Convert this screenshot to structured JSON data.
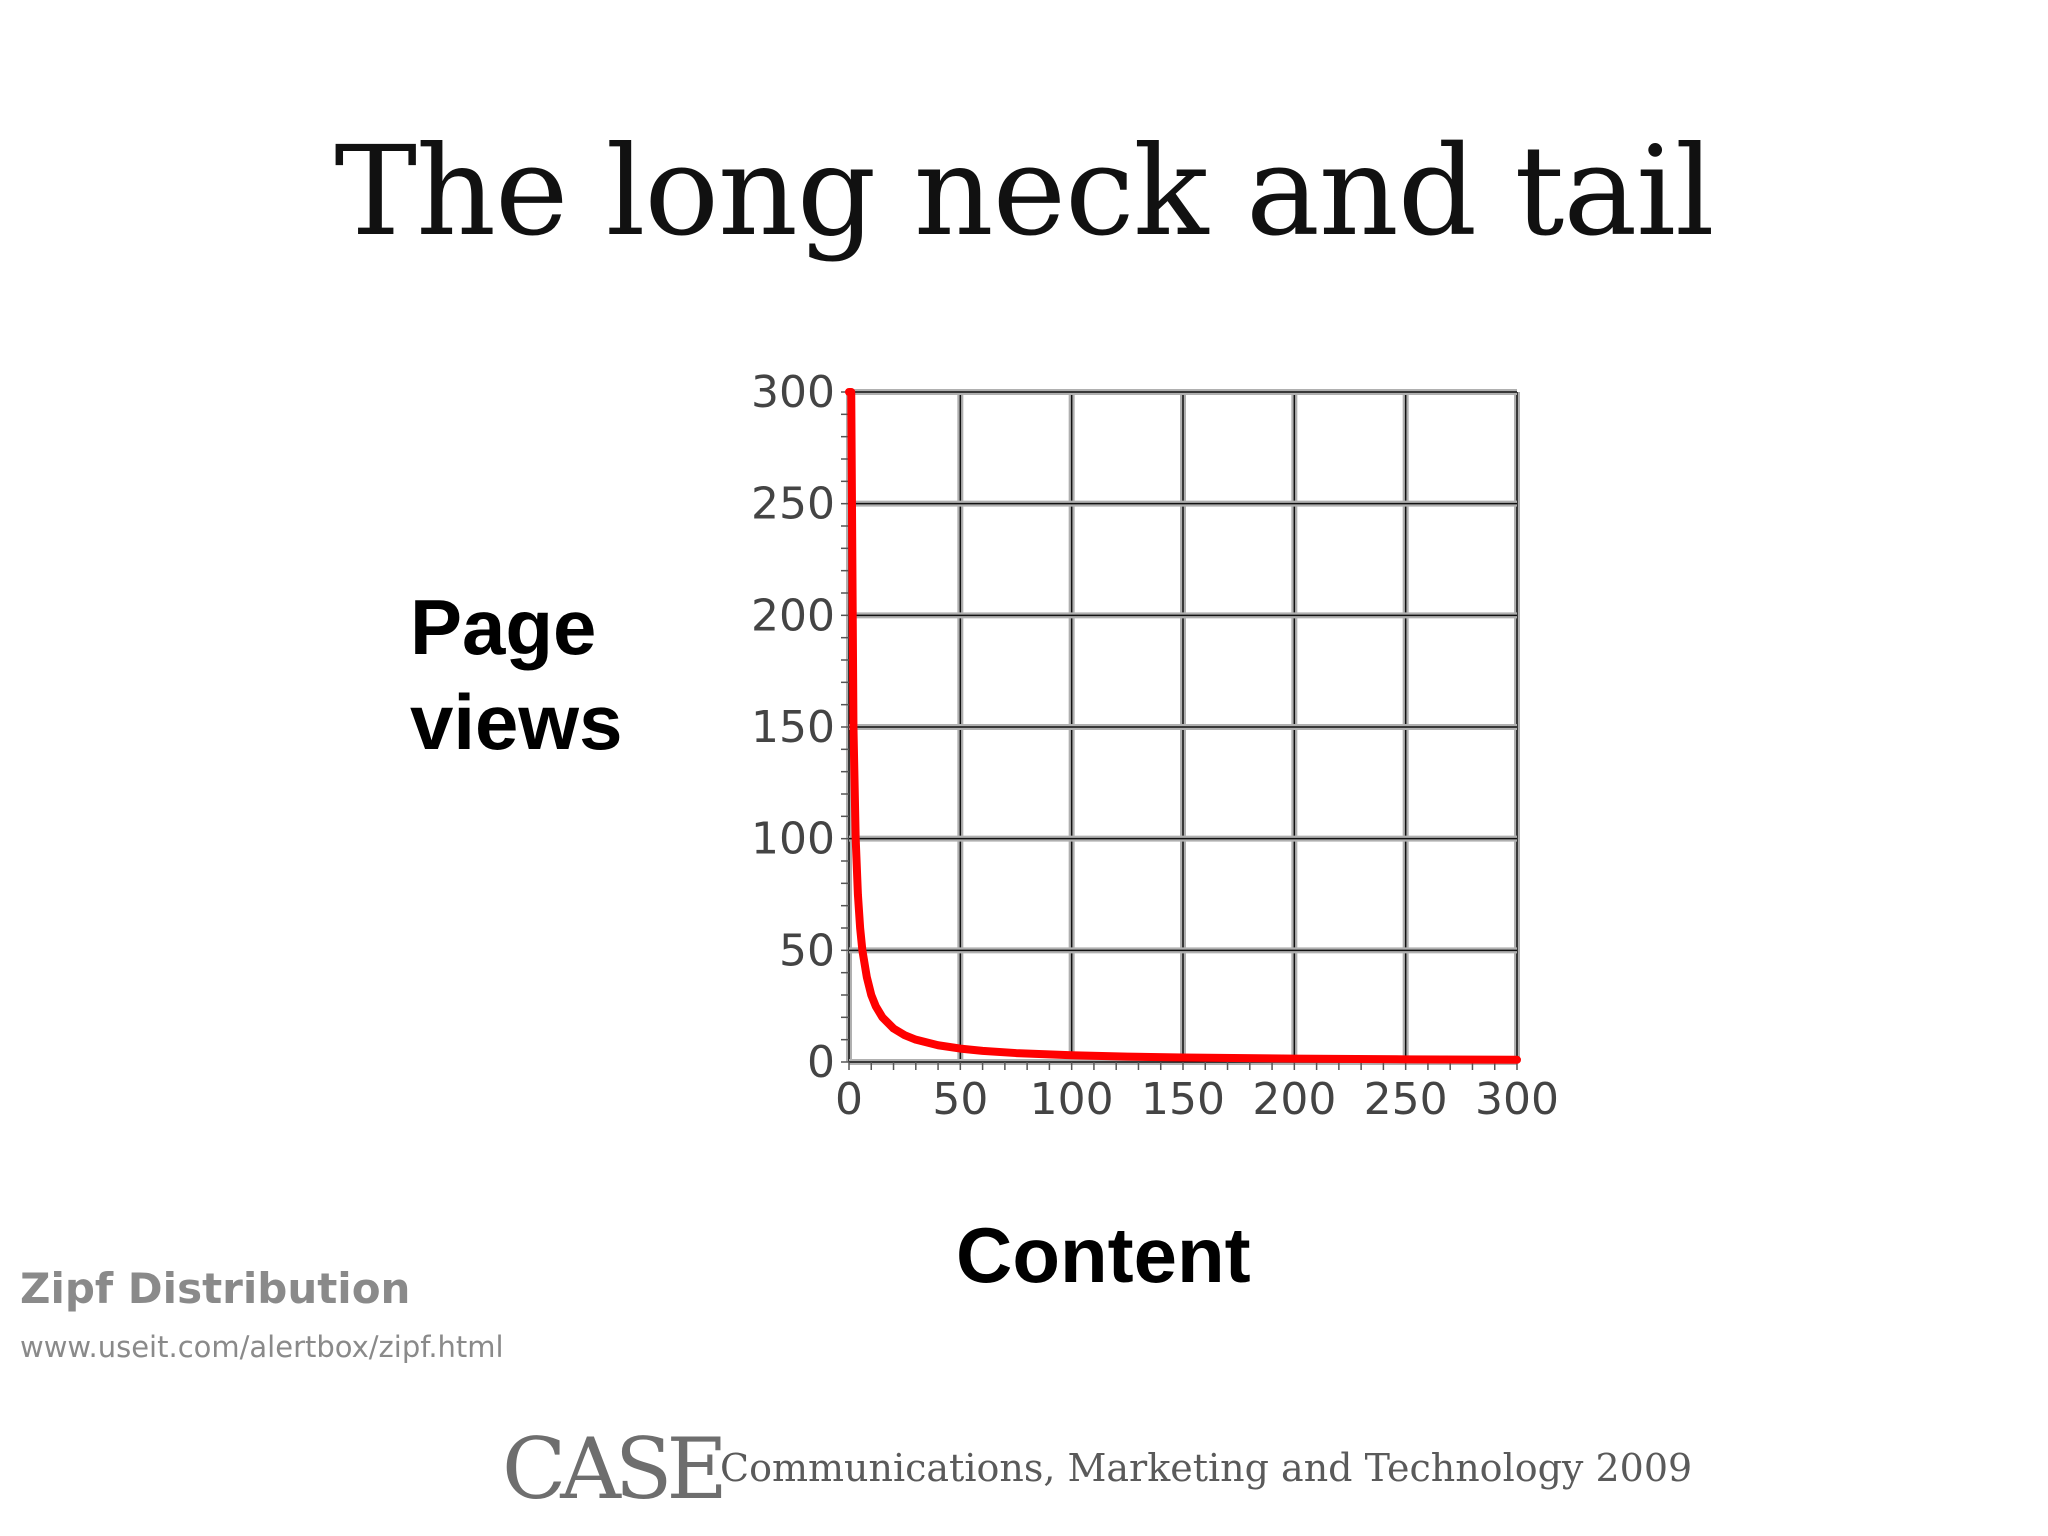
{
  "slide": {
    "title": "The long neck and tail",
    "y_label_line1": "Page",
    "y_label_line2": "views",
    "x_label": "Content"
  },
  "source": {
    "title": "Zipf Distribution",
    "url": "www.useit.com/alertbox/zipf.html"
  },
  "footer": {
    "logo": "CASE",
    "text": "Communications, Marketing and Technology 2009"
  },
  "colors": {
    "curve": "#ff0000",
    "grid": "#111111",
    "grid_shade": "#b0b0b0",
    "tick_text": "#444444"
  },
  "chart_data": {
    "type": "line",
    "title": "",
    "xlabel": "Content",
    "ylabel": "Page views",
    "xlim": [
      0,
      300
    ],
    "ylim": [
      0,
      300
    ],
    "xticks": [
      0,
      50,
      100,
      150,
      200,
      250,
      300
    ],
    "yticks": [
      0,
      50,
      100,
      150,
      200,
      250,
      300
    ],
    "grid": true,
    "series": [
      {
        "name": "",
        "x": [
          1,
          2,
          3,
          4,
          5,
          6,
          8,
          10,
          12,
          15,
          20,
          25,
          30,
          40,
          50,
          60,
          75,
          100,
          125,
          150,
          200,
          250,
          300
        ],
        "y": [
          300,
          150,
          100,
          75,
          60,
          50,
          38,
          30,
          25,
          20,
          15,
          12,
          10,
          7.5,
          6,
          5,
          4,
          3,
          2.4,
          2,
          1.5,
          1.2,
          1
        ]
      }
    ]
  }
}
